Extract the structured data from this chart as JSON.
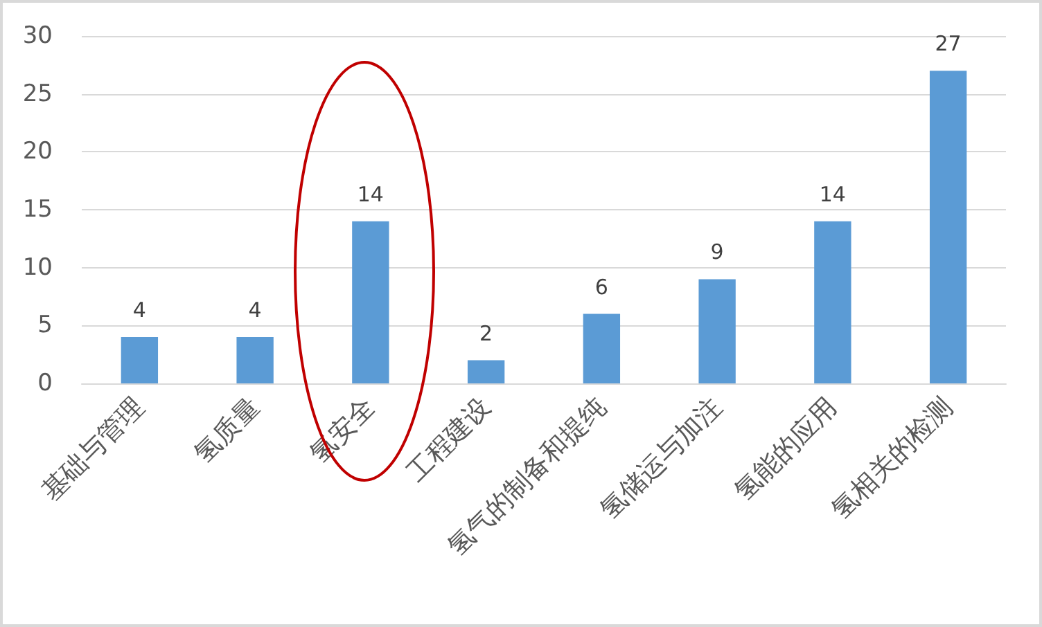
{
  "chart_data": {
    "type": "bar",
    "categories": [
      "基础与管理",
      "氢质量",
      "氢安全",
      "工程建设",
      "氢气的制备和提纯",
      "氢储运与加注",
      "氢能的应用",
      "氢相关的检测"
    ],
    "values": [
      4,
      4,
      14,
      2,
      6,
      9,
      14,
      27
    ],
    "color": "#5b9bd5",
    "ylim": [
      0,
      30
    ],
    "yticks": [
      0,
      5,
      10,
      15,
      20,
      25,
      30
    ],
    "grid": "y",
    "data_labels": true
  }
}
